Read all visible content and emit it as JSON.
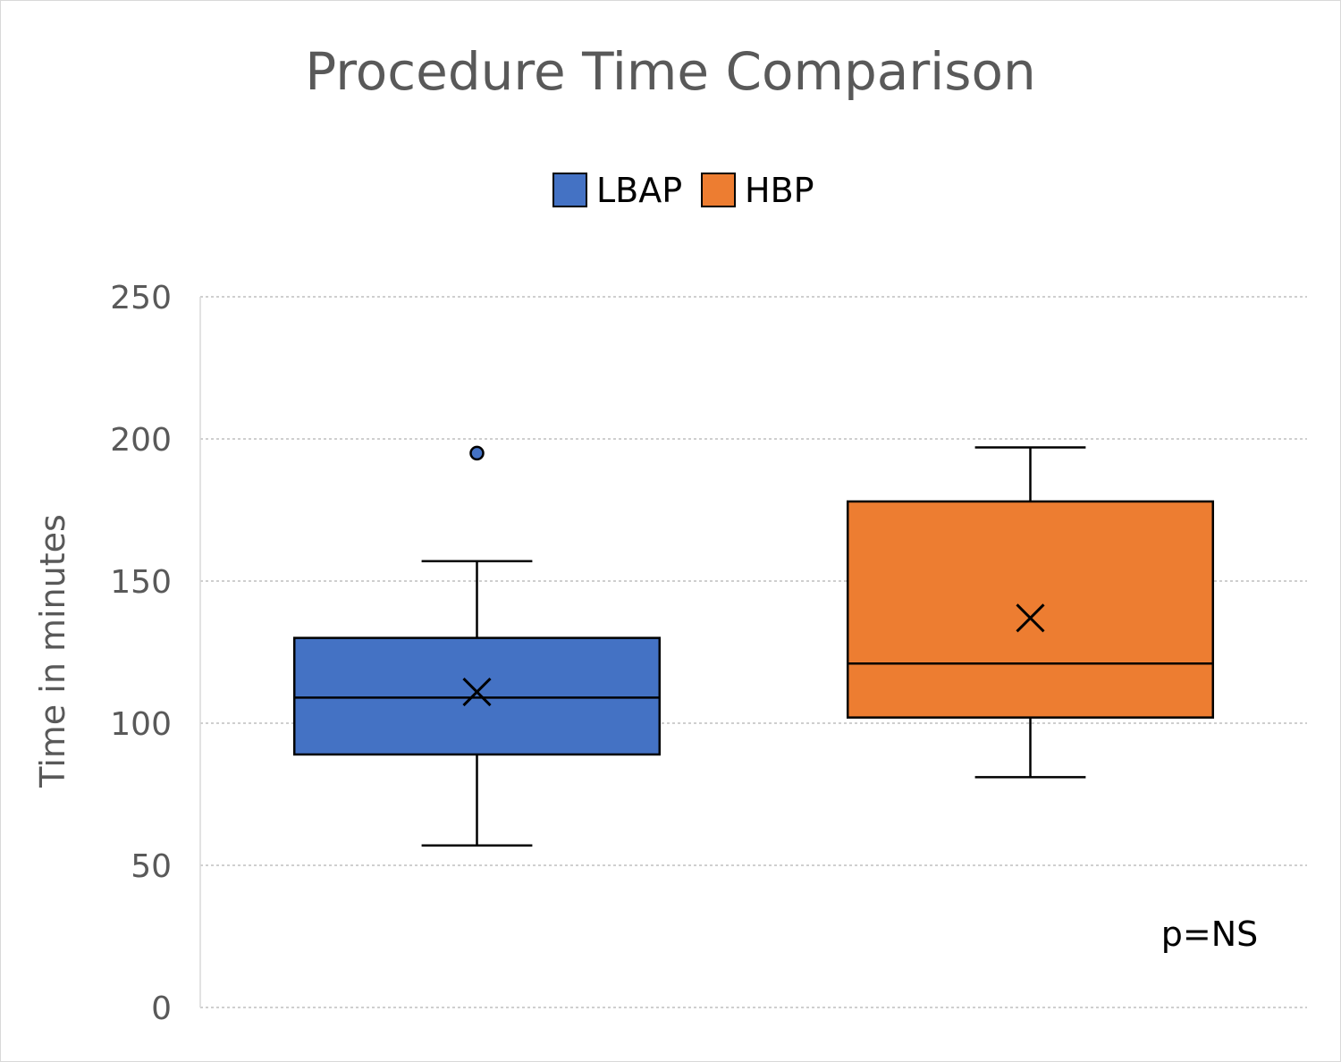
{
  "chart_data": {
    "type": "box",
    "title": "Procedure Time Comparison",
    "xlabel": "",
    "ylabel": "Time in minutes",
    "ylim": [
      0,
      250
    ],
    "yticks": [
      0,
      50,
      100,
      150,
      200,
      250
    ],
    "grid": true,
    "legend_position": "top",
    "annotation": "p=NS",
    "series": [
      {
        "name": "LBAP",
        "color": "#4472C4",
        "min": 57,
        "q1": 89,
        "median": 109,
        "q3": 130,
        "max": 157,
        "mean": 111,
        "outliers": [
          195
        ]
      },
      {
        "name": "HBP",
        "color": "#ED7D31",
        "min": 81,
        "q1": 102,
        "median": 121,
        "q3": 178,
        "max": 197,
        "mean": 137,
        "outliers": []
      }
    ]
  }
}
